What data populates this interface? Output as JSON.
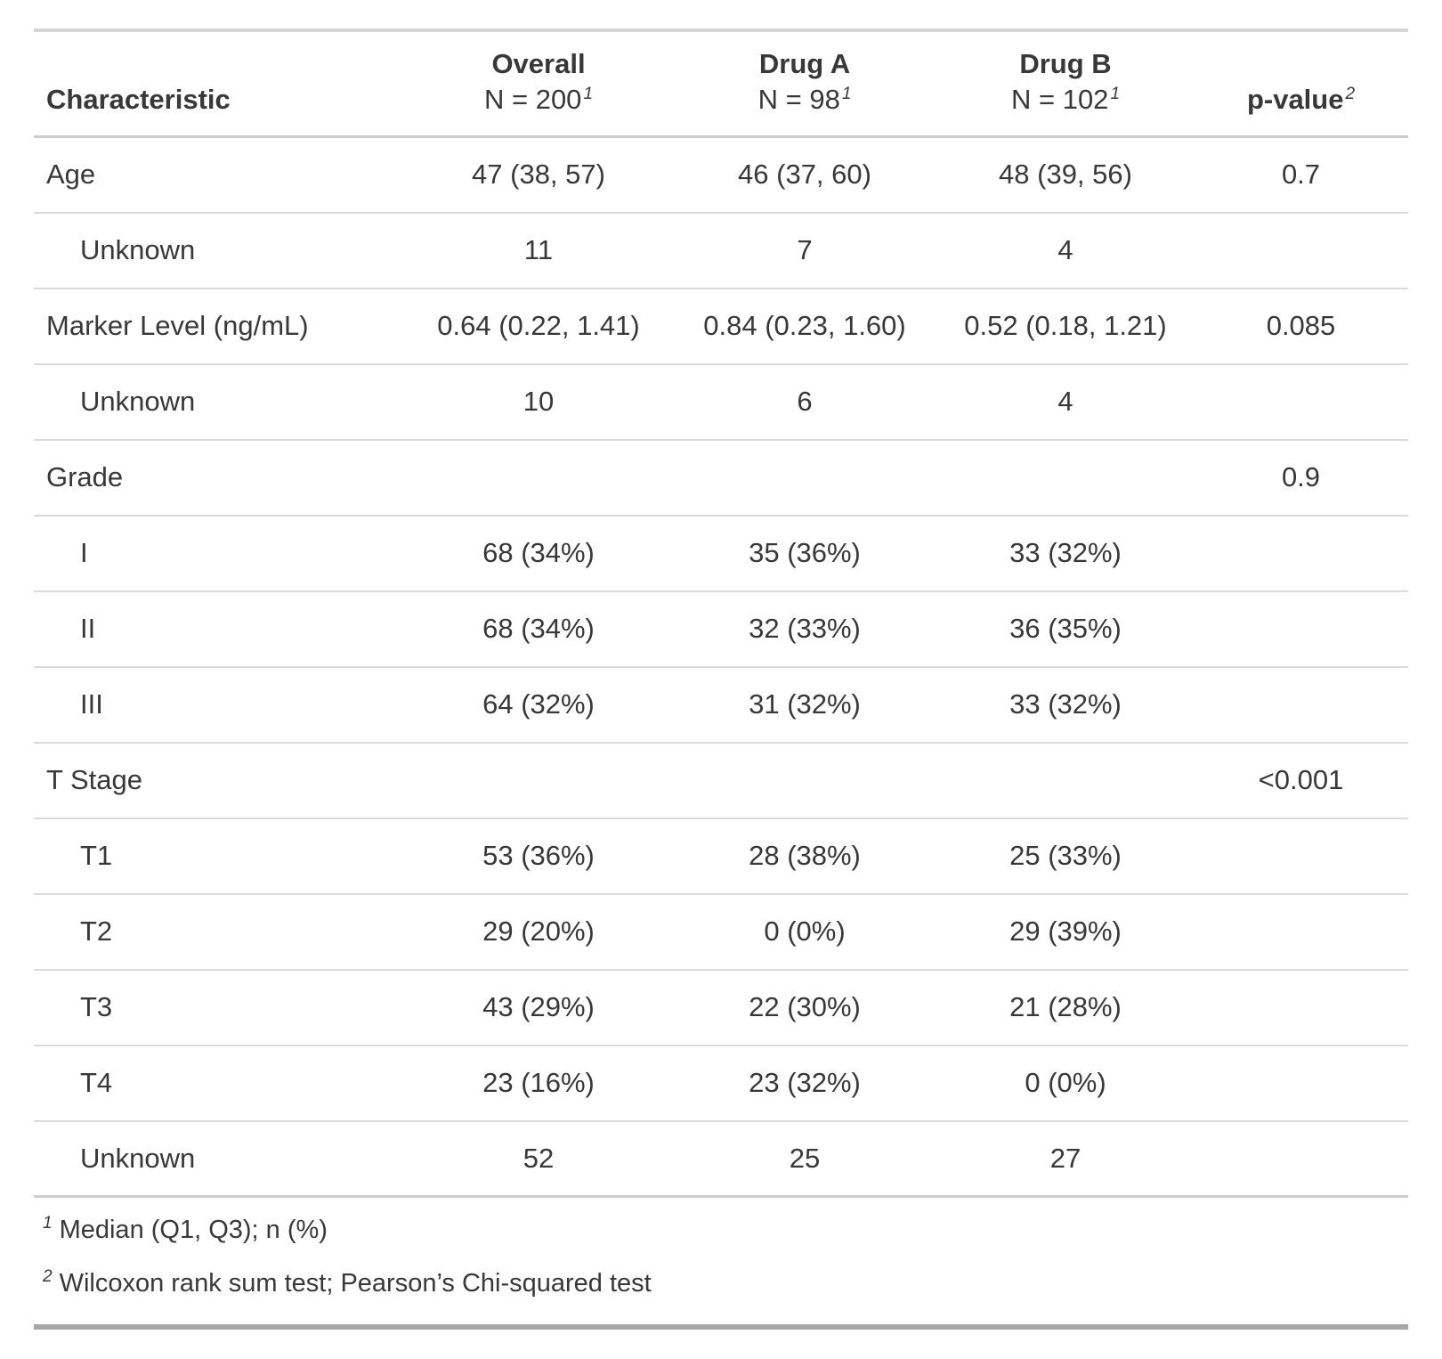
{
  "chart_data": {
    "type": "table",
    "header": {
      "characteristic": "Characteristic",
      "columns": [
        {
          "label": "Overall",
          "sublabel": "N = 200",
          "footnote_mark": "1"
        },
        {
          "label": "Drug A",
          "sublabel": "N = 98",
          "footnote_mark": "1"
        },
        {
          "label": "Drug B",
          "sublabel": "N = 102",
          "footnote_mark": "1"
        }
      ],
      "p_value": {
        "label": "p-value",
        "footnote_mark": "2"
      }
    },
    "rows": [
      {
        "label": "Age",
        "indent": false,
        "values": [
          "47 (38, 57)",
          "46 (37, 60)",
          "48 (39, 56)"
        ],
        "p_value": "0.7"
      },
      {
        "label": "Unknown",
        "indent": true,
        "values": [
          "11",
          "7",
          "4"
        ],
        "p_value": ""
      },
      {
        "label": "Marker Level (ng/mL)",
        "indent": false,
        "values": [
          "0.64 (0.22, 1.41)",
          "0.84 (0.23, 1.60)",
          "0.52 (0.18, 1.21)"
        ],
        "p_value": "0.085"
      },
      {
        "label": "Unknown",
        "indent": true,
        "values": [
          "10",
          "6",
          "4"
        ],
        "p_value": ""
      },
      {
        "label": "Grade",
        "indent": false,
        "values": [
          "",
          "",
          ""
        ],
        "p_value": "0.9"
      },
      {
        "label": "I",
        "indent": true,
        "values": [
          "68 (34%)",
          "35 (36%)",
          "33 (32%)"
        ],
        "p_value": ""
      },
      {
        "label": "II",
        "indent": true,
        "values": [
          "68 (34%)",
          "32 (33%)",
          "36 (35%)"
        ],
        "p_value": ""
      },
      {
        "label": "III",
        "indent": true,
        "values": [
          "64 (32%)",
          "31 (32%)",
          "33 (32%)"
        ],
        "p_value": ""
      },
      {
        "label": "T Stage",
        "indent": false,
        "values": [
          "",
          "",
          ""
        ],
        "p_value": "<0.001"
      },
      {
        "label": "T1",
        "indent": true,
        "values": [
          "53 (36%)",
          "28 (38%)",
          "25 (33%)"
        ],
        "p_value": ""
      },
      {
        "label": "T2",
        "indent": true,
        "values": [
          "29 (20%)",
          "0 (0%)",
          "29 (39%)"
        ],
        "p_value": ""
      },
      {
        "label": "T3",
        "indent": true,
        "values": [
          "43 (29%)",
          "22 (30%)",
          "21 (28%)"
        ],
        "p_value": ""
      },
      {
        "label": "T4",
        "indent": true,
        "values": [
          "23 (16%)",
          "23 (32%)",
          "0 (0%)"
        ],
        "p_value": ""
      },
      {
        "label": "Unknown",
        "indent": true,
        "values": [
          "52",
          "25",
          "27"
        ],
        "p_value": ""
      }
    ],
    "footnotes": [
      {
        "mark": "1",
        "text": "Median (Q1, Q3); n (%)"
      },
      {
        "mark": "2",
        "text": "Wilcoxon rank sum test; Pearson’s Chi-squared test"
      }
    ],
    "layout_hints": {
      "value_columns_alignment": "center",
      "grid": "horizontal-rules-only"
    }
  },
  "colors": {
    "background": "#ffffff",
    "text": "#383838",
    "border_row": "#dbdbdb",
    "border_header": "#cdcdcd",
    "border_top": "#d4d4d4",
    "border_bottom_thick": "#a7a7a7"
  }
}
